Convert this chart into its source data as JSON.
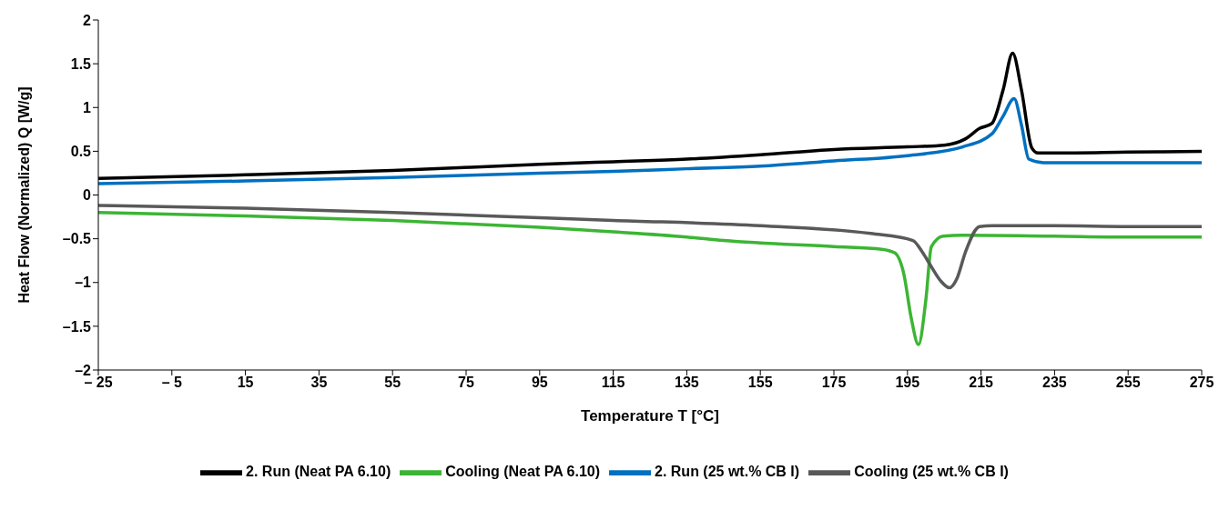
{
  "chart_data": {
    "type": "line",
    "xlabel": "Temperature T [°C]",
    "ylabel": "Heat Flow (Normalized) Q [W/g]",
    "xlim": [
      -25,
      275
    ],
    "xticks": [
      {
        "value": -25,
        "label": "– 25"
      },
      {
        "value": -5,
        "label": "– 5"
      },
      15,
      35,
      55,
      75,
      95,
      115,
      135,
      155,
      175,
      195,
      215,
      235,
      255,
      275
    ],
    "ylim": [
      -2,
      2
    ],
    "yticks": [
      {
        "value": -2,
        "label": "–2"
      },
      {
        "value": -1.5,
        "label": "–1.5"
      },
      {
        "value": -1,
        "label": "–1"
      },
      {
        "value": -0.5,
        "label": "–0.5"
      },
      0,
      0.5,
      1,
      1.5,
      2
    ],
    "grid": false,
    "legend": "bottom",
    "marker": "none",
    "line_style": "solid",
    "series": [
      {
        "name": "2. Run (Neat PA 6.10)",
        "color": "#000000",
        "x": [
          -25,
          15,
          55,
          95,
          115,
          135,
          155,
          175,
          195,
          205,
          210.7,
          214.6,
          218,
          221,
          223.6,
          226,
          228.8,
          230.5,
          235,
          255,
          275
        ],
        "values": [
          0.19,
          0.23,
          0.28,
          0.35,
          0.38,
          0.41,
          0.46,
          0.52,
          0.55,
          0.57,
          0.64,
          0.76,
          0.82,
          1.2,
          1.62,
          1.2,
          0.54,
          0.48,
          0.48,
          0.49,
          0.5
        ]
      },
      {
        "name": "Cooling (Neat PA 6.10)",
        "color": "#3cb534",
        "x": [
          -25,
          15,
          55,
          95,
          115,
          135,
          145,
          175,
          188,
          191.5,
          194,
          196,
          198,
          200,
          201.5,
          204.7,
          210,
          235,
          255,
          275
        ],
        "values": [
          -0.2,
          -0.24,
          -0.29,
          -0.37,
          -0.42,
          -0.48,
          -0.52,
          -0.59,
          -0.62,
          -0.66,
          -0.9,
          -1.4,
          -1.71,
          -1.2,
          -0.59,
          -0.47,
          -0.46,
          -0.47,
          -0.48,
          -0.48
        ]
      },
      {
        "name": "2. Run (25 wt.% CB I)",
        "color": "#0070c0",
        "x": [
          -25,
          15,
          55,
          95,
          115,
          135,
          155,
          175,
          195,
          210,
          218,
          221,
          224,
          226,
          228,
          232,
          255,
          275
        ],
        "values": [
          0.13,
          0.16,
          0.2,
          0.25,
          0.27,
          0.3,
          0.33,
          0.39,
          0.45,
          0.55,
          0.7,
          0.9,
          1.1,
          0.8,
          0.41,
          0.37,
          0.37,
          0.37
        ]
      },
      {
        "name": "Cooling (25 wt.% CB I)",
        "color": "#595959",
        "x": [
          -25,
          15,
          55,
          95,
          115,
          155,
          185,
          196.5,
          199,
          201.5,
          204,
          206.4,
          208.5,
          210.7,
          214.6,
          218,
          235,
          255,
          275
        ],
        "values": [
          -0.12,
          -0.15,
          -0.2,
          -0.26,
          -0.29,
          -0.35,
          -0.44,
          -0.52,
          -0.65,
          -0.82,
          -0.98,
          -1.06,
          -0.95,
          -0.66,
          -0.36,
          -0.35,
          -0.35,
          -0.36,
          -0.36
        ]
      }
    ]
  }
}
